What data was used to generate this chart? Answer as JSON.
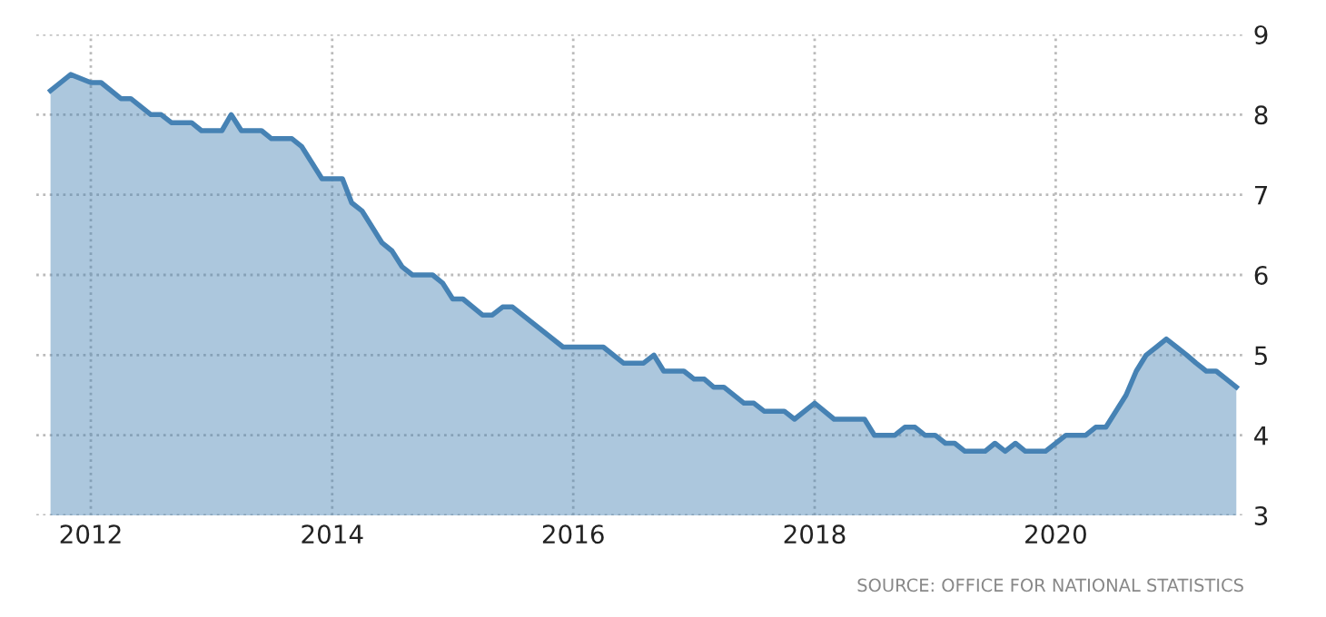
{
  "chart_data": {
    "type": "area",
    "x": [
      "2011-09",
      "2011-11",
      "2012-01",
      "2012-02",
      "2012-04",
      "2012-05",
      "2012-07",
      "2012-08",
      "2012-09",
      "2012-11",
      "2012-12",
      "2013-02",
      "2013-03",
      "2013-04",
      "2013-06",
      "2013-07",
      "2013-09",
      "2013-10",
      "2013-12",
      "2014-02",
      "2014-03",
      "2014-04",
      "2014-06",
      "2014-07",
      "2014-08",
      "2014-09",
      "2014-11",
      "2014-12",
      "2015-01",
      "2015-02",
      "2015-04",
      "2015-05",
      "2015-06",
      "2015-07",
      "2015-12",
      "2016-04",
      "2016-06",
      "2016-08",
      "2016-09",
      "2016-10",
      "2016-12",
      "2017-01",
      "2017-02",
      "2017-03",
      "2017-04",
      "2017-06",
      "2017-07",
      "2017-08",
      "2017-10",
      "2017-11",
      "2018-01",
      "2018-03",
      "2018-06",
      "2018-07",
      "2018-09",
      "2018-10",
      "2018-11",
      "2018-12",
      "2019-01",
      "2019-02",
      "2019-03",
      "2019-04",
      "2019-06",
      "2019-07",
      "2019-08",
      "2019-09",
      "2019-10",
      "2019-12",
      "2020-02",
      "2020-04",
      "2020-05",
      "2020-06",
      "2020-08",
      "2020-09",
      "2020-10",
      "2020-11",
      "2020-12",
      "2021-01",
      "2021-02",
      "2021-03",
      "2021-04",
      "2021-05",
      "2021-06",
      "2021-07"
    ],
    "series": [
      {
        "color": "#4682b4",
        "values": [
          8.3,
          8.5,
          8.4,
          8.4,
          8.2,
          8.2,
          8.0,
          8.0,
          7.9,
          7.9,
          7.8,
          7.8,
          8.0,
          7.8,
          7.8,
          7.7,
          7.7,
          7.6,
          7.2,
          7.2,
          6.9,
          6.8,
          6.4,
          6.3,
          6.1,
          6.0,
          6.0,
          5.9,
          5.7,
          5.7,
          5.5,
          5.5,
          5.6,
          5.6,
          5.1,
          5.1,
          4.9,
          4.9,
          5.0,
          4.8,
          4.8,
          4.7,
          4.7,
          4.6,
          4.6,
          4.4,
          4.4,
          4.3,
          4.3,
          4.2,
          4.4,
          4.2,
          4.2,
          4.0,
          4.0,
          4.1,
          4.1,
          4.0,
          4.0,
          3.9,
          3.9,
          3.8,
          3.8,
          3.9,
          3.8,
          3.9,
          3.8,
          3.8,
          4.0,
          4.0,
          4.1,
          4.1,
          4.5,
          4.8,
          5.0,
          5.1,
          5.2,
          5.1,
          5.0,
          4.9,
          4.8,
          4.8,
          4.7,
          4.6
        ]
      }
    ],
    "xlim": [
      "2011-07-20",
      "2021-07-25"
    ],
    "xticks": [
      "2012",
      "2014",
      "2016",
      "2018",
      "2020"
    ],
    "ylim": [
      3,
      9
    ],
    "yticks": [
      3,
      4,
      5,
      6,
      7,
      8,
      9
    ],
    "grid": true,
    "line_style": "solid",
    "annotations": [
      "SOURCE: OFFICE FOR NATIONAL STATISTICS"
    ]
  }
}
